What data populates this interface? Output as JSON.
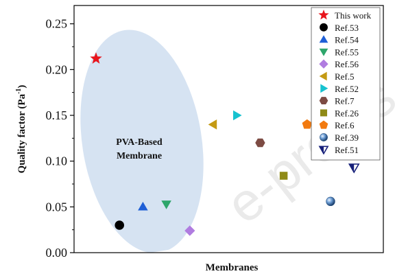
{
  "chart_data": {
    "type": "scatter",
    "xlabel": "Membranes",
    "ylabel_main": "Quality factor (Pa",
    "ylabel_sup": "-1",
    "ylabel_end": ")",
    "ylim": [
      0,
      0.27
    ],
    "xlim": [
      0,
      14
    ],
    "yticks": [
      "0.00",
      "0.05",
      "0.10",
      "0.15",
      "0.20",
      "0.25"
    ],
    "ytick_values": [
      0,
      0.05,
      0.1,
      0.15,
      0.2,
      0.25
    ],
    "grid": false,
    "legend_position": "top-right",
    "annotation_line1": "PVA-Based",
    "annotation_line2": "Membrane",
    "watermark": "e-proofs",
    "series": [
      {
        "name": "This work",
        "x": 1,
        "y": 0.212,
        "marker": "star",
        "color": "#e8141c"
      },
      {
        "name": "Ref.53",
        "x": 2,
        "y": 0.03,
        "marker": "circle",
        "color": "#000000"
      },
      {
        "name": "Ref.54",
        "x": 3,
        "y": 0.05,
        "marker": "triangle-up",
        "color": "#1f5fd6"
      },
      {
        "name": "Ref.55",
        "x": 4,
        "y": 0.053,
        "marker": "triangle-down",
        "color": "#2ea66b"
      },
      {
        "name": "Ref.56",
        "x": 5,
        "y": 0.024,
        "marker": "diamond",
        "color": "#b07ce0"
      },
      {
        "name": "Ref.5",
        "x": 6,
        "y": 0.14,
        "marker": "triangle-left",
        "color": "#c49a14"
      },
      {
        "name": "Ref.52",
        "x": 7,
        "y": 0.15,
        "marker": "triangle-right",
        "color": "#17c2cf"
      },
      {
        "name": "Ref.7",
        "x": 8,
        "y": 0.12,
        "marker": "hexagon",
        "color": "#7d4b43"
      },
      {
        "name": "Ref.26",
        "x": 9,
        "y": 0.084,
        "marker": "square",
        "color": "#8f8a16"
      },
      {
        "name": "Ref.6",
        "x": 10,
        "y": 0.14,
        "marker": "pentagon",
        "color": "#f27a0f"
      },
      {
        "name": "Ref.39",
        "x": 11,
        "y": 0.056,
        "marker": "sphere",
        "color": "#4a7fb8"
      },
      {
        "name": "Ref.51",
        "x": 12,
        "y": 0.093,
        "marker": "triangle-down-half",
        "color": "#17207a"
      }
    ]
  }
}
